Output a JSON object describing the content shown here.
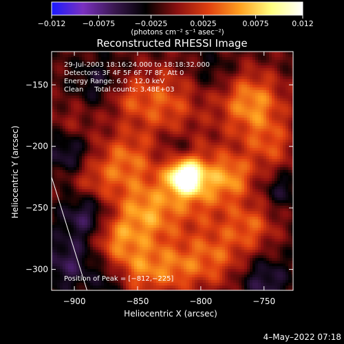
{
  "chart_data": {
    "type": "heatmap",
    "title": "Reconstructed RHESSI Image",
    "xlabel": "Heliocentric X (arcsec)",
    "ylabel": "Heliocentric Y (arcsec)",
    "xlim": [
      -918,
      -727
    ],
    "ylim": [
      -317,
      -123
    ],
    "xticks": [
      -900,
      -850,
      -800,
      -750
    ],
    "xtick_labels": [
      "−900",
      "−850",
      "−800",
      "−750"
    ],
    "yticks": [
      -150,
      -200,
      -250,
      -300
    ],
    "ytick_labels": [
      "−150",
      "−200",
      "−250",
      "−300"
    ],
    "colorbar": {
      "min": -0.012,
      "max": 0.012,
      "ticks": [
        -0.012,
        -0.0075,
        -0.0025,
        0.0025,
        0.0075,
        0.012
      ],
      "tick_labels": [
        "−0.012",
        "−0.0075",
        "−0.0025",
        "0.0025",
        "0.0075",
        "0.012"
      ],
      "unit_label": "(photons cm⁻² s⁻¹ asec⁻²)",
      "colors": [
        "#1a1aff",
        "#7a30c0",
        "#3a1850",
        "#000000",
        "#8a1010",
        "#e04010",
        "#ffa020",
        "#ffff80",
        "#ffffff"
      ]
    },
    "annotations": [
      "29-Jul-2003 18:16:24.000 to 18:18:32.000",
      "Detectors: 3F 4F 5F 6F 7F 8F, Att 0",
      "Energy Range: 6.0 - 12.0 keV",
      "Clean     Total counts: 3.48E+03"
    ],
    "peak_label": "Position of Peak = [−812,−225]",
    "peak": {
      "x": -812,
      "y": -225,
      "value": 0.012
    },
    "limb_line": [
      [
        -918,
        -225
      ],
      [
        -890,
        -317
      ]
    ],
    "grid": false,
    "footer": "4–May–2022 07:18"
  }
}
